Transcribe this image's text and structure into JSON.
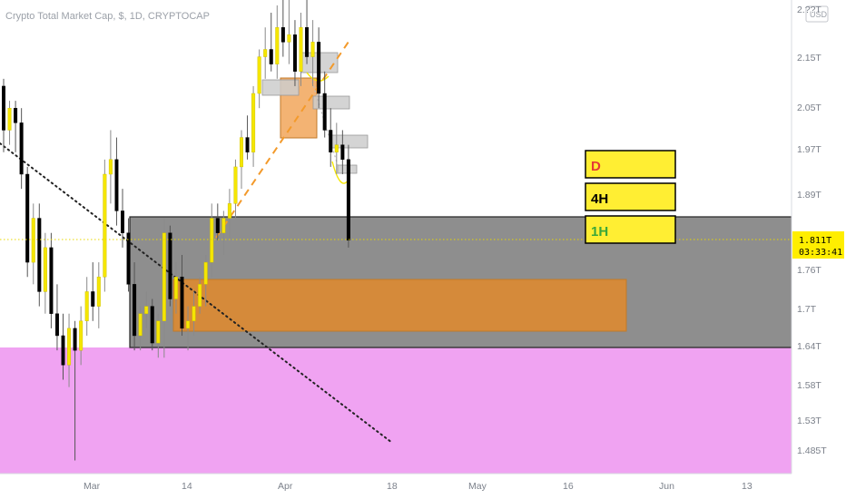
{
  "header": {
    "symbol_title": "Crypto Total Market Cap, $, 1D, CRYPTOCAP"
  },
  "currency_badge": "USD",
  "price_axis": {
    "top_partial_label": "2.??T",
    "labels": [
      "2.15T",
      "2.05T",
      "1.97T",
      "1.89T",
      "1.76T",
      "1.7T",
      "1.64T",
      "1.58T",
      "1.53T",
      "1.485T"
    ]
  },
  "time_axis": {
    "labels": [
      "Mar",
      "14",
      "Apr",
      "18",
      "May",
      "16",
      "Jun",
      "13"
    ]
  },
  "last_price": {
    "value": "1.811T",
    "countdown": "03:33:41",
    "color": "#ffee00"
  },
  "timeframe_boxes": [
    {
      "label": "D",
      "text_color": "#e53935"
    },
    {
      "label": "4H",
      "text_color": "#000000"
    },
    {
      "label": "1H",
      "text_color": "#3aa63a"
    }
  ],
  "zones": {
    "gray_zone_color": "#8e8e8e",
    "orange_zone_color": "#d98a36",
    "pink_zone_color": "#f0a3f2"
  },
  "chart_data": {
    "type": "candlestick",
    "title": "Crypto Total Market Cap, $, 1D, CRYPTOCAP",
    "y_unit": "T USD",
    "ylim": [
      1.45,
      2.2
    ],
    "x_tick_labels": [
      "Mar",
      "14",
      "Apr",
      "18",
      "May",
      "16",
      "Jun",
      "13"
    ],
    "last_price": 1.811,
    "candle_colors": {
      "up": "#f5e600",
      "down": "#000000"
    },
    "candles": [
      [
        2.02,
        2.03,
        1.93,
        1.96
      ],
      [
        1.96,
        2.0,
        1.94,
        1.99
      ],
      [
        1.99,
        2.0,
        1.93,
        1.97
      ],
      [
        1.97,
        1.99,
        1.88,
        1.9
      ],
      [
        1.9,
        1.91,
        1.76,
        1.78
      ],
      [
        1.78,
        1.86,
        1.75,
        1.84
      ],
      [
        1.84,
        1.86,
        1.72,
        1.74
      ],
      [
        1.74,
        1.82,
        1.71,
        1.8
      ],
      [
        1.8,
        1.82,
        1.69,
        1.71
      ],
      [
        1.71,
        1.75,
        1.66,
        1.68
      ],
      [
        1.68,
        1.71,
        1.62,
        1.64
      ],
      [
        1.64,
        1.71,
        1.61,
        1.69
      ],
      [
        1.69,
        1.7,
        1.51,
        1.66
      ],
      [
        1.66,
        1.72,
        1.64,
        1.7
      ],
      [
        1.7,
        1.76,
        1.68,
        1.74
      ],
      [
        1.74,
        1.78,
        1.7,
        1.72
      ],
      [
        1.72,
        1.78,
        1.69,
        1.76
      ],
      [
        1.76,
        1.92,
        1.74,
        1.9
      ],
      [
        1.9,
        1.96,
        1.86,
        1.92
      ],
      [
        1.92,
        1.95,
        1.83,
        1.85
      ],
      [
        1.85,
        1.88,
        1.8,
        1.82
      ],
      [
        1.82,
        1.84,
        1.74,
        1.75
      ],
      [
        1.75,
        1.78,
        1.66,
        1.68
      ],
      [
        1.68,
        1.72,
        1.66,
        1.71
      ],
      [
        1.71,
        1.74,
        1.69,
        1.72
      ],
      [
        1.72,
        1.73,
        1.66,
        1.67
      ],
      [
        1.67,
        1.71,
        1.65,
        1.7
      ],
      [
        1.7,
        1.84,
        1.65,
        1.82
      ],
      [
        1.82,
        1.83,
        1.72,
        1.73
      ],
      [
        1.73,
        1.78,
        1.71,
        1.76
      ],
      [
        1.76,
        1.79,
        1.68,
        1.69
      ],
      [
        1.69,
        1.72,
        1.66,
        1.7
      ],
      [
        1.7,
        1.74,
        1.68,
        1.72
      ],
      [
        1.72,
        1.76,
        1.71,
        1.75
      ],
      [
        1.75,
        1.79,
        1.72,
        1.78
      ],
      [
        1.78,
        1.86,
        1.76,
        1.84
      ],
      [
        1.84,
        1.86,
        1.81,
        1.82
      ],
      [
        1.82,
        1.85,
        1.79,
        1.84
      ],
      [
        1.84,
        1.88,
        1.81,
        1.86
      ],
      [
        1.86,
        1.92,
        1.84,
        1.91
      ],
      [
        1.91,
        1.96,
        1.88,
        1.95
      ],
      [
        1.95,
        1.98,
        1.92,
        1.93
      ],
      [
        1.93,
        2.02,
        1.91,
        2.01
      ],
      [
        2.01,
        2.07,
        1.99,
        2.06
      ],
      [
        2.06,
        2.1,
        2.03,
        2.07
      ],
      [
        2.07,
        2.12,
        2.04,
        2.05
      ],
      [
        2.05,
        2.13,
        2.03,
        2.1
      ],
      [
        2.1,
        2.14,
        2.06,
        2.08
      ],
      [
        2.08,
        2.15,
        2.05,
        2.09
      ],
      [
        2.09,
        2.11,
        2.02,
        2.04
      ],
      [
        2.04,
        2.12,
        2.02,
        2.1
      ],
      [
        2.1,
        2.14,
        2.05,
        2.06
      ],
      [
        2.06,
        2.11,
        2.02,
        2.08
      ],
      [
        2.08,
        2.1,
        1.99,
        2.01
      ],
      [
        2.01,
        2.04,
        1.95,
        1.96
      ],
      [
        1.96,
        1.99,
        1.91,
        1.93
      ],
      [
        1.93,
        1.97,
        1.9,
        1.94
      ],
      [
        1.94,
        1.96,
        1.9,
        1.92
      ],
      [
        1.92,
        1.94,
        1.8,
        1.81
      ]
    ]
  }
}
